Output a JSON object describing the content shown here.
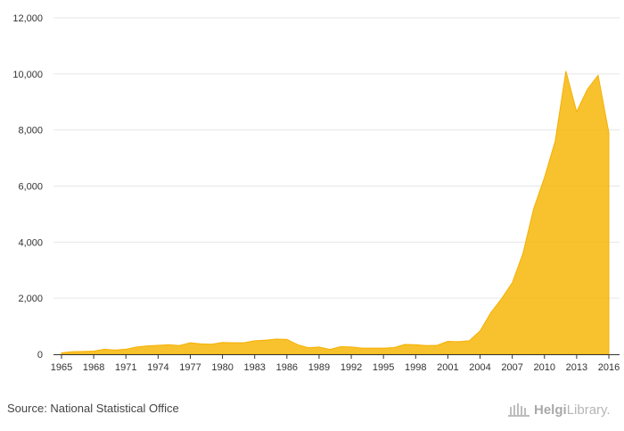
{
  "chart_data": {
    "type": "area",
    "title": "",
    "xlabel": "",
    "ylabel": "",
    "ylim": [
      0,
      12000
    ],
    "y_ticks": [
      0,
      2000,
      4000,
      6000,
      8000,
      10000,
      12000
    ],
    "y_tick_labels": [
      "0",
      "2,000",
      "4,000",
      "6,000",
      "8,000",
      "10,000",
      "12,000"
    ],
    "x_tick_labels": [
      "1965",
      "1968",
      "1971",
      "1974",
      "1977",
      "1980",
      "1983",
      "1986",
      "1989",
      "1992",
      "1995",
      "1998",
      "2001",
      "2004",
      "2007",
      "2010",
      "2013",
      "2016"
    ],
    "grid": true,
    "series": [
      {
        "name": "Value",
        "color": "#f7b500",
        "x": [
          1965,
          1966,
          1967,
          1968,
          1969,
          1970,
          1971,
          1972,
          1973,
          1974,
          1975,
          1976,
          1977,
          1978,
          1979,
          1980,
          1981,
          1982,
          1983,
          1984,
          1985,
          1986,
          1987,
          1988,
          1989,
          1990,
          1991,
          1992,
          1993,
          1994,
          1995,
          1996,
          1997,
          1998,
          1999,
          2000,
          2001,
          2002,
          2003,
          2004,
          2005,
          2006,
          2007,
          2008,
          2009,
          2010,
          2011,
          2012,
          2013,
          2014,
          2015,
          2016
        ],
        "values": [
          50,
          90,
          100,
          110,
          180,
          150,
          180,
          260,
          300,
          320,
          340,
          310,
          410,
          370,
          360,
          420,
          410,
          410,
          480,
          500,
          540,
          530,
          340,
          230,
          260,
          170,
          270,
          260,
          220,
          220,
          220,
          240,
          350,
          340,
          310,
          320,
          460,
          450,
          480,
          830,
          1480,
          1980,
          2550,
          3600,
          5200,
          6300,
          7600,
          10100,
          8650,
          9450,
          9950,
          7900
        ]
      }
    ]
  },
  "source_text": "Source: National Statistical Office",
  "logo": {
    "brand_strong": "Helgi",
    "brand_light": "Library."
  }
}
